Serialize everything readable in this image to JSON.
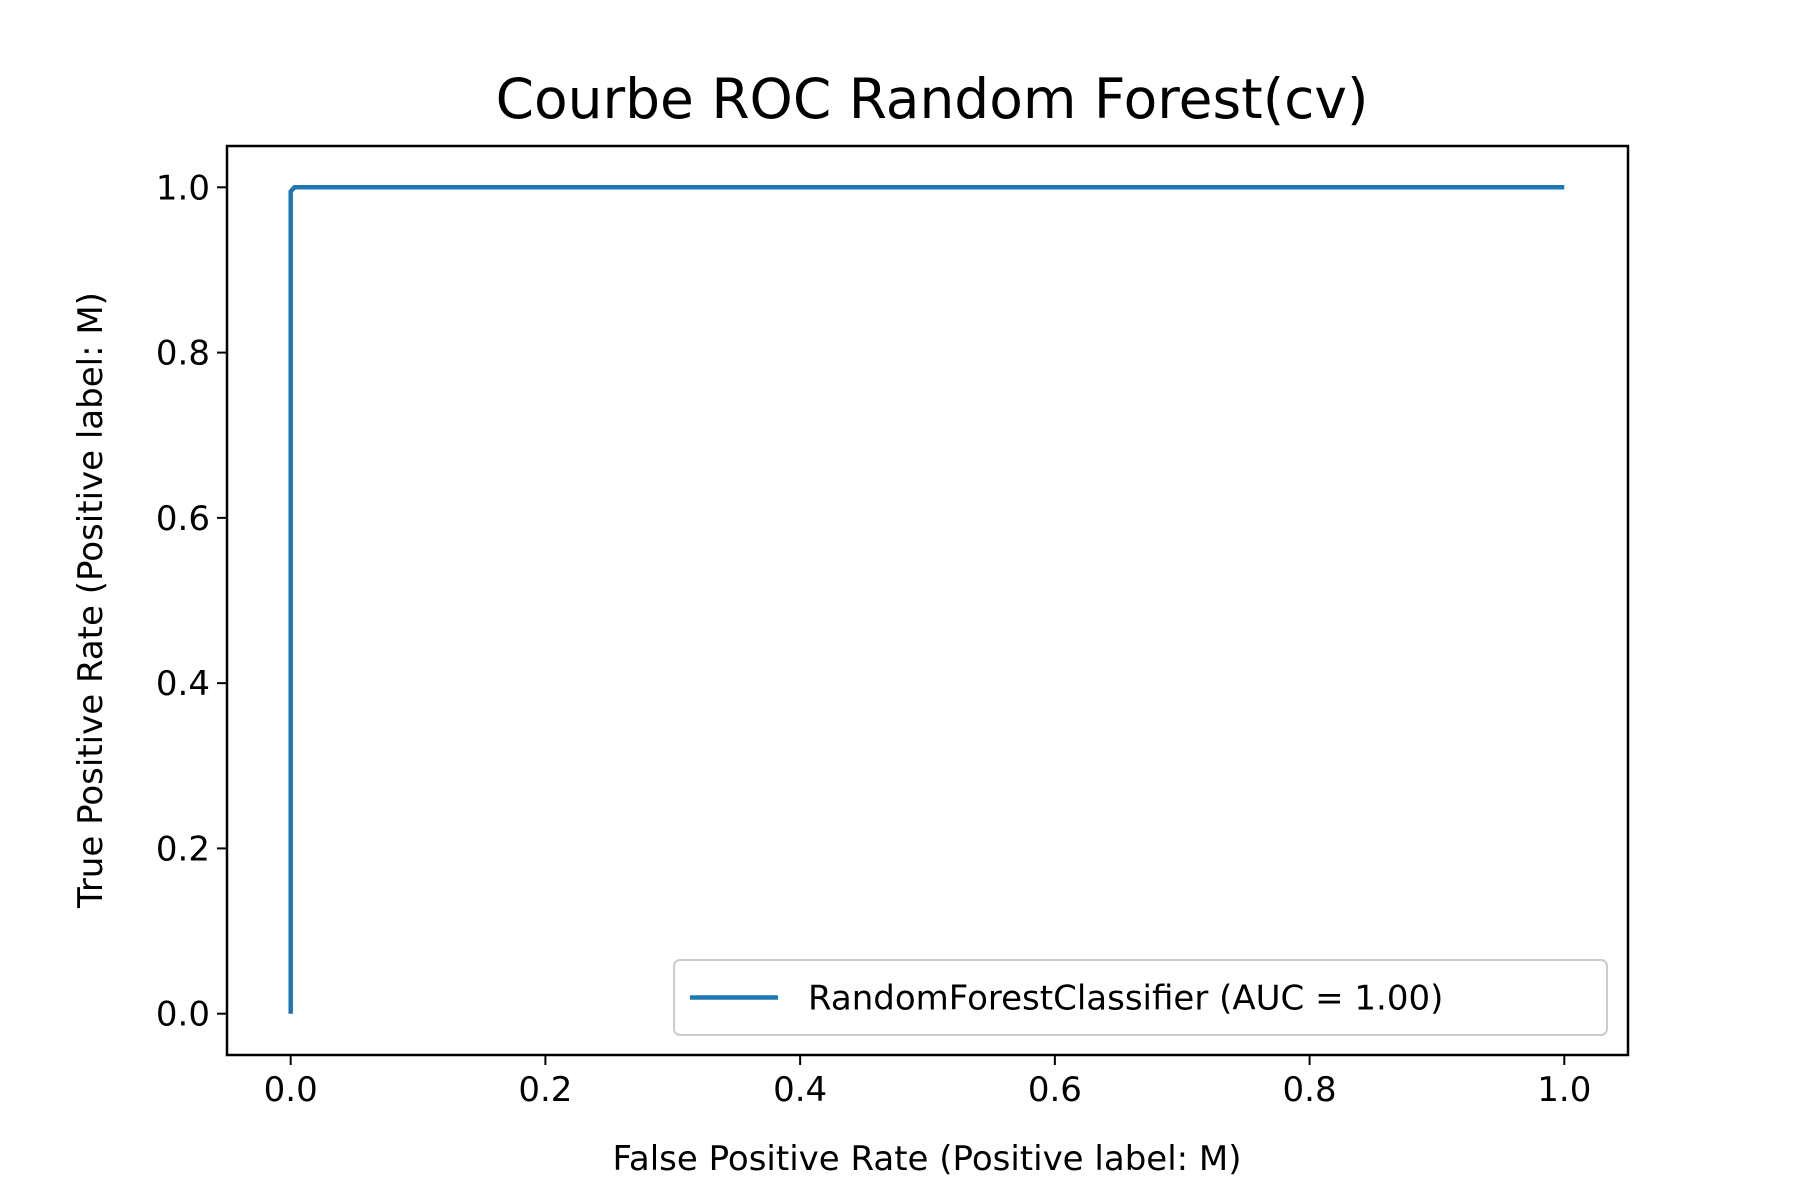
{
  "chart_data": {
    "type": "line",
    "title": "Courbe ROC Random Forest(cv)",
    "xlabel": "False Positive Rate (Positive label: M)",
    "ylabel": "True Positive Rate (Positive label: M)",
    "xlim": [
      -0.05,
      1.05
    ],
    "ylim": [
      -0.05,
      1.05
    ],
    "xticks": [
      "0.0",
      "0.2",
      "0.4",
      "0.6",
      "0.8",
      "1.0"
    ],
    "yticks": [
      "0.0",
      "0.2",
      "0.4",
      "0.6",
      "0.8",
      "1.0"
    ],
    "grid": false,
    "legend_position": "lower-right",
    "series": [
      {
        "name": "RandomForestClassifier (AUC = 1.00)",
        "color": "#1f77b4",
        "x": [
          0.0,
          0.0,
          0.003,
          1.0
        ],
        "y": [
          0.0,
          0.995,
          1.0,
          1.0
        ]
      }
    ]
  }
}
